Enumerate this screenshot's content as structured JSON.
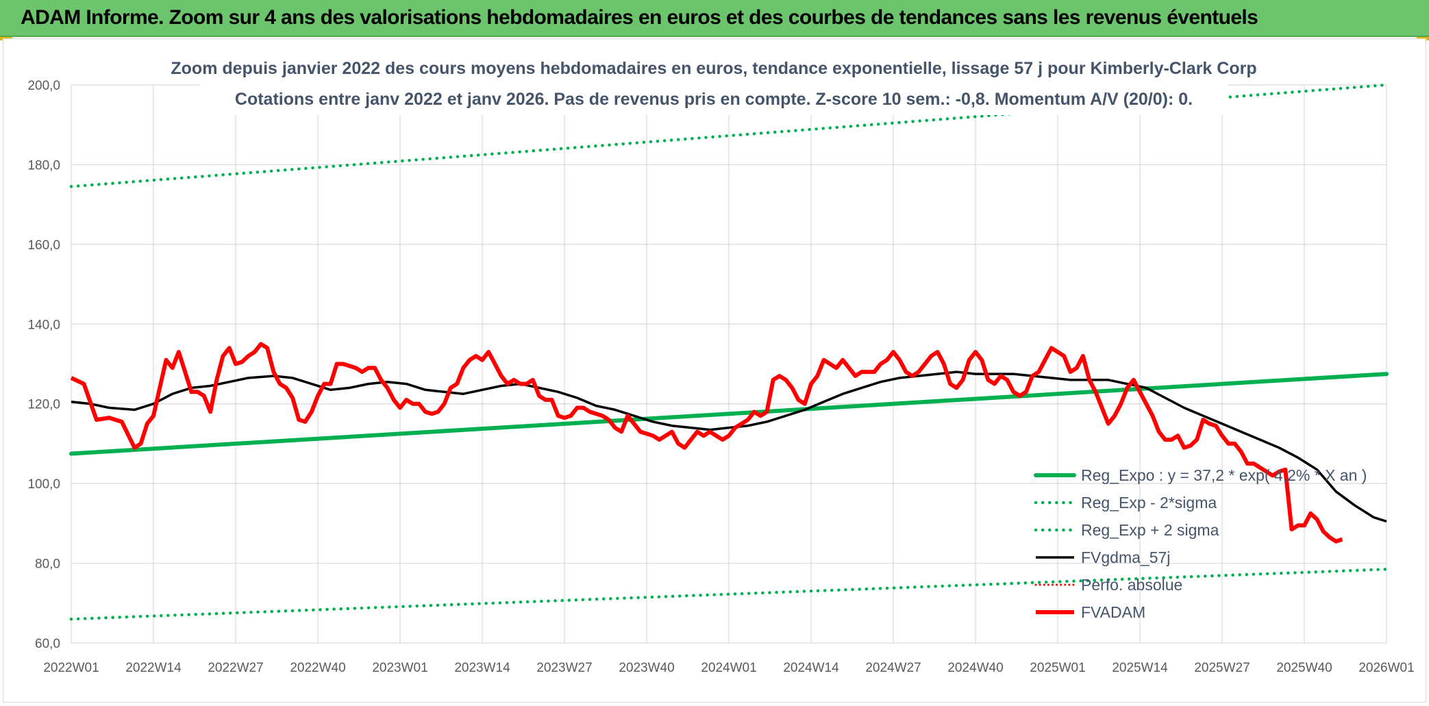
{
  "banner": {
    "title": "ADAM Informe. Zoom sur 4 ans des valorisations hebdomadaires en euros et des courbes de tendances sans les revenus éventuels"
  },
  "colors": {
    "banner": "#6cc46c",
    "trend": "#00b050",
    "fvadam": "#ff0000",
    "fvgdma": "#000000",
    "perfo": "#ff0000",
    "grid": "#d9d9d9",
    "text": "#44546a"
  },
  "chart_data": {
    "type": "line",
    "title_lines": [
      "Zoom depuis janvier 2022 des cours moyens hebdomadaires en euros, tendance exponentielle, lissage 57 j pour Kimberly-Clark Corp",
      "Cotations entre janv 2022 et janv 2026. Pas de revenus pris en compte. Z-score 10 sem.: -0,8. Momentum A/V (20/0): 0."
    ],
    "ylim": [
      60,
      200
    ],
    "yticks": [
      "60,0",
      "80,0",
      "100,0",
      "120,0",
      "140,0",
      "160,0",
      "180,0",
      "200,0"
    ],
    "x_range_weeks": [
      0,
      208
    ],
    "xticks": [
      "2022W01",
      "2022W14",
      "2022W27",
      "2022W40",
      "2023W01",
      "2023W14",
      "2023W27",
      "2023W40",
      "2024W01",
      "2024W14",
      "2024W27",
      "2024W40",
      "2025W01",
      "2025W14",
      "2025W27",
      "2025W40",
      "2026W01"
    ],
    "xtick_weeks": [
      0,
      13,
      26,
      39,
      52,
      65,
      78,
      91,
      104,
      117,
      130,
      143,
      156,
      169,
      182,
      195,
      208
    ],
    "legend": [
      {
        "key": "reg_expo",
        "label": "Reg_Expo : y = 37,2 * exp( 4,2% * X an )"
      },
      {
        "key": "reg_minus",
        "label": "Reg_Exp - 2*sigma"
      },
      {
        "key": "reg_plus",
        "label": "Reg_Exp + 2 sigma"
      },
      {
        "key": "fvgdma",
        "label": "FVgdma_57j"
      },
      {
        "key": "perfo",
        "label": "Perfo. absolue"
      },
      {
        "key": "fvadam",
        "label": "FVADAM"
      }
    ],
    "series": [
      {
        "name": "Reg_Expo : y = 37,2 * exp( 4,2% * X an )",
        "key": "reg_expo",
        "style": "solid-green",
        "points": [
          [
            0,
            107.5
          ],
          [
            208,
            127.5
          ]
        ]
      },
      {
        "name": "Reg_Exp + 2 sigma",
        "key": "reg_plus",
        "style": "dotted-green",
        "points": [
          [
            0,
            174.5
          ],
          [
            208,
            200
          ]
        ]
      },
      {
        "name": "Reg_Exp - 2*sigma",
        "key": "reg_minus",
        "style": "dotted-green",
        "points": [
          [
            0,
            66.0
          ],
          [
            208,
            78.5
          ]
        ]
      },
      {
        "name": "FVgdma_57j",
        "key": "fvgdma",
        "style": "black",
        "points": [
          [
            0,
            120.5
          ],
          [
            3,
            120
          ],
          [
            6,
            119
          ],
          [
            10,
            118.5
          ],
          [
            13,
            120
          ],
          [
            16,
            122.5
          ],
          [
            19,
            124
          ],
          [
            22,
            124.5
          ],
          [
            25,
            125.5
          ],
          [
            28,
            126.5
          ],
          [
            32,
            127
          ],
          [
            35,
            126.5
          ],
          [
            38,
            125
          ],
          [
            41,
            123.5
          ],
          [
            44,
            124
          ],
          [
            47,
            125
          ],
          [
            50,
            125.5
          ],
          [
            53,
            125
          ],
          [
            56,
            123.5
          ],
          [
            59,
            123
          ],
          [
            62,
            122.5
          ],
          [
            65,
            123.5
          ],
          [
            68,
            124.5
          ],
          [
            71,
            125
          ],
          [
            74,
            124
          ],
          [
            77,
            123
          ],
          [
            80,
            121.5
          ],
          [
            83,
            119.5
          ],
          [
            86,
            118.5
          ],
          [
            89,
            117
          ],
          [
            92,
            115.5
          ],
          [
            95,
            114.5
          ],
          [
            98,
            114
          ],
          [
            101,
            113.5
          ],
          [
            104,
            114
          ],
          [
            107,
            114.5
          ],
          [
            110,
            115.5
          ],
          [
            113,
            117
          ],
          [
            116,
            118.5
          ],
          [
            119,
            120.5
          ],
          [
            122,
            122.5
          ],
          [
            125,
            124
          ],
          [
            128,
            125.5
          ],
          [
            131,
            126.5
          ],
          [
            134,
            127
          ],
          [
            137,
            127.5
          ],
          [
            140,
            128
          ],
          [
            143,
            127.5
          ],
          [
            146,
            127.5
          ],
          [
            149,
            127.5
          ],
          [
            152,
            127
          ],
          [
            155,
            126.5
          ],
          [
            158,
            126
          ],
          [
            161,
            126
          ],
          [
            164,
            126
          ],
          [
            167,
            125
          ],
          [
            170,
            124
          ],
          [
            173,
            121.5
          ],
          [
            176,
            119
          ],
          [
            179,
            117
          ],
          [
            182,
            115
          ],
          [
            185,
            113
          ],
          [
            188,
            111
          ],
          [
            191,
            109
          ],
          [
            194,
            106.5
          ],
          [
            197,
            103.5
          ],
          [
            200,
            98
          ],
          [
            203,
            94.5
          ],
          [
            206,
            91.5
          ],
          [
            208,
            90.5
          ]
        ]
      },
      {
        "name": "FVADAM",
        "key": "fvadam",
        "style": "thick-red",
        "points": [
          [
            0,
            126.5
          ],
          [
            2,
            125
          ],
          [
            4,
            116
          ],
          [
            6,
            116.5
          ],
          [
            8,
            115.5
          ],
          [
            10,
            109
          ],
          [
            11,
            110
          ],
          [
            12,
            115
          ],
          [
            13,
            117
          ],
          [
            14,
            124
          ],
          [
            15,
            131
          ],
          [
            16,
            129
          ],
          [
            17,
            133
          ],
          [
            18,
            128
          ],
          [
            19,
            123
          ],
          [
            20,
            123
          ],
          [
            21,
            122
          ],
          [
            22,
            118
          ],
          [
            23,
            126
          ],
          [
            24,
            132
          ],
          [
            25,
            134
          ],
          [
            26,
            130
          ],
          [
            27,
            130.5
          ],
          [
            28,
            132
          ],
          [
            29,
            133
          ],
          [
            30,
            135
          ],
          [
            31,
            134
          ],
          [
            32,
            128
          ],
          [
            33,
            125
          ],
          [
            34,
            124
          ],
          [
            35,
            121.5
          ],
          [
            36,
            116
          ],
          [
            37,
            115.5
          ],
          [
            38,
            118
          ],
          [
            39,
            122
          ],
          [
            40,
            125
          ],
          [
            41,
            125
          ],
          [
            42,
            130
          ],
          [
            43,
            130
          ],
          [
            44,
            129.5
          ],
          [
            45,
            129
          ],
          [
            46,
            128
          ],
          [
            47,
            129
          ],
          [
            48,
            129
          ],
          [
            49,
            126
          ],
          [
            50,
            124
          ],
          [
            51,
            121
          ],
          [
            52,
            119
          ],
          [
            53,
            121
          ],
          [
            54,
            120
          ],
          [
            55,
            120
          ],
          [
            56,
            118
          ],
          [
            57,
            117.5
          ],
          [
            58,
            118
          ],
          [
            59,
            120
          ],
          [
            60,
            124
          ],
          [
            61,
            125
          ],
          [
            62,
            129
          ],
          [
            63,
            131
          ],
          [
            64,
            132
          ],
          [
            65,
            131
          ],
          [
            66,
            133
          ],
          [
            67,
            130
          ],
          [
            68,
            127
          ],
          [
            69,
            125
          ],
          [
            70,
            126
          ],
          [
            71,
            125
          ],
          [
            72,
            125
          ],
          [
            73,
            126
          ],
          [
            74,
            122
          ],
          [
            75,
            121
          ],
          [
            76,
            121
          ],
          [
            77,
            117
          ],
          [
            78,
            116.5
          ],
          [
            79,
            117
          ],
          [
            80,
            119
          ],
          [
            81,
            119
          ],
          [
            82,
            118
          ],
          [
            83,
            117.5
          ],
          [
            84,
            117
          ],
          [
            85,
            116
          ],
          [
            86,
            114
          ],
          [
            87,
            113
          ],
          [
            88,
            117
          ],
          [
            89,
            115
          ],
          [
            90,
            113
          ],
          [
            91,
            112.5
          ],
          [
            92,
            112
          ],
          [
            93,
            111
          ],
          [
            94,
            112
          ],
          [
            95,
            113
          ],
          [
            96,
            110
          ],
          [
            97,
            109
          ],
          [
            98,
            111
          ],
          [
            99,
            113
          ],
          [
            100,
            112
          ],
          [
            101,
            113
          ],
          [
            102,
            112
          ],
          [
            103,
            111
          ],
          [
            104,
            112
          ],
          [
            105,
            114
          ],
          [
            106,
            115
          ],
          [
            107,
            116
          ],
          [
            108,
            118
          ],
          [
            109,
            117
          ],
          [
            110,
            118
          ],
          [
            111,
            126
          ],
          [
            112,
            127
          ],
          [
            113,
            126
          ],
          [
            114,
            124
          ],
          [
            115,
            121
          ],
          [
            116,
            120
          ],
          [
            117,
            125
          ],
          [
            118,
            127
          ],
          [
            119,
            131
          ],
          [
            120,
            130
          ],
          [
            121,
            129
          ],
          [
            122,
            131
          ],
          [
            123,
            129
          ],
          [
            124,
            127
          ],
          [
            125,
            128
          ],
          [
            126,
            128
          ],
          [
            127,
            128
          ],
          [
            128,
            130
          ],
          [
            129,
            131
          ],
          [
            130,
            133
          ],
          [
            131,
            131
          ],
          [
            132,
            128
          ],
          [
            133,
            127
          ],
          [
            134,
            128
          ],
          [
            135,
            130
          ],
          [
            136,
            132
          ],
          [
            137,
            133
          ],
          [
            138,
            130
          ],
          [
            139,
            125
          ],
          [
            140,
            124
          ],
          [
            141,
            126
          ],
          [
            142,
            131
          ],
          [
            143,
            133
          ],
          [
            144,
            131
          ],
          [
            145,
            126
          ],
          [
            146,
            125
          ],
          [
            147,
            127
          ],
          [
            148,
            126
          ],
          [
            149,
            123
          ],
          [
            150,
            122
          ],
          [
            151,
            123
          ],
          [
            152,
            127
          ],
          [
            153,
            128
          ],
          [
            154,
            131
          ],
          [
            155,
            134
          ],
          [
            156,
            133
          ],
          [
            157,
            132
          ],
          [
            158,
            128
          ],
          [
            159,
            129
          ],
          [
            160,
            132
          ],
          [
            161,
            126
          ],
          [
            162,
            123
          ],
          [
            163,
            119
          ],
          [
            164,
            115
          ],
          [
            165,
            117
          ],
          [
            166,
            120
          ],
          [
            167,
            124
          ],
          [
            168,
            126
          ],
          [
            169,
            123
          ],
          [
            170,
            120
          ],
          [
            171,
            117
          ],
          [
            172,
            113
          ],
          [
            173,
            111
          ],
          [
            174,
            111
          ],
          [
            175,
            112
          ],
          [
            176,
            109
          ],
          [
            177,
            109.5
          ],
          [
            178,
            111
          ],
          [
            179,
            116
          ],
          [
            180,
            115
          ],
          [
            181,
            114.5
          ],
          [
            182,
            112
          ],
          [
            183,
            110
          ],
          [
            184,
            110
          ],
          [
            185,
            108
          ],
          [
            186,
            105
          ],
          [
            187,
            105
          ],
          [
            188,
            104
          ],
          [
            189,
            103
          ],
          [
            190,
            102
          ],
          [
            191,
            103
          ],
          [
            192,
            103.5
          ],
          [
            193,
            88.5
          ],
          [
            194,
            89.5
          ],
          [
            195,
            89.5
          ],
          [
            196,
            92.5
          ],
          [
            197,
            91
          ],
          [
            198,
            88
          ],
          [
            199,
            86.5
          ],
          [
            200,
            85.5
          ],
          [
            201,
            86
          ]
        ]
      }
    ]
  }
}
